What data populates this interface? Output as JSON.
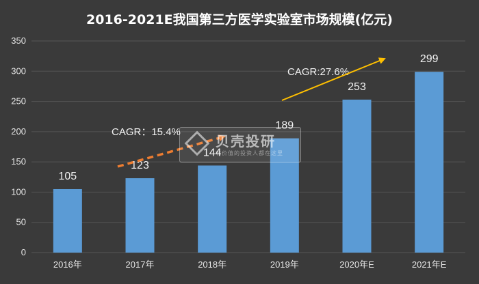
{
  "chart_data": {
    "type": "bar",
    "title": "2016-2021E我国第三方医学实验室市场规模(亿元)",
    "categories": [
      "2016年",
      "2017年",
      "2018年",
      "2019年",
      "2020年E",
      "2021年E"
    ],
    "values": [
      105,
      123,
      144,
      189,
      253,
      299
    ],
    "ylim": [
      0,
      350
    ],
    "yticks": [
      0,
      50,
      100,
      150,
      200,
      250,
      300,
      350
    ],
    "grid": true,
    "bar_color": "#5b9bd5",
    "annotations": [
      {
        "text": "CAGR：15.4%",
        "arrow_color": "#ed7d31",
        "arrow_style": "dashed"
      },
      {
        "text": "CAGR:27.6%",
        "arrow_color": "#ffc000",
        "arrow_style": "solid"
      }
    ]
  },
  "watermark": {
    "title": "贝壳投研",
    "subtitle": "有价值的投资人都在这里"
  },
  "colors": {
    "background": "#3a3a3a",
    "grid": "#555555",
    "text": "#e6e6e6"
  }
}
